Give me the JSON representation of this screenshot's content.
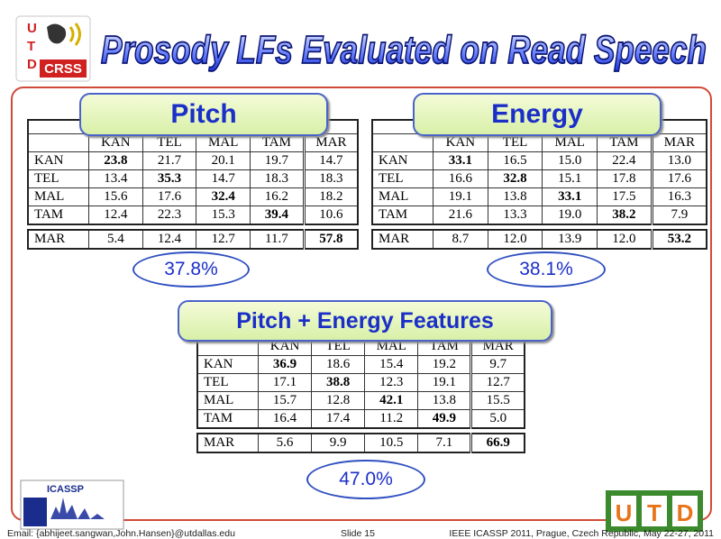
{
  "title": "Prosody LFs Evaluated on Read Speech",
  "logo": {
    "letters": [
      "U",
      "T",
      "D"
    ],
    "lab": "CRSS"
  },
  "panels": [
    {
      "label": "Pitch",
      "accuracy": "37.8%",
      "header": [
        "KAN",
        "TEL",
        "MAL",
        "TAM",
        "MAR"
      ],
      "rows": [
        {
          "label": "KAN",
          "cells": [
            "23.8",
            "21.7",
            "20.1",
            "19.7",
            "14.7"
          ]
        },
        {
          "label": "TEL",
          "cells": [
            "13.4",
            "35.3",
            "14.7",
            "18.3",
            "18.3"
          ]
        },
        {
          "label": "MAL",
          "cells": [
            "15.6",
            "17.6",
            "32.4",
            "16.2",
            "18.2"
          ]
        },
        {
          "label": "TAM",
          "cells": [
            "12.4",
            "22.3",
            "15.3",
            "39.4",
            "10.6"
          ]
        },
        {
          "label": "MAR",
          "cells": [
            "5.4",
            "12.4",
            "12.7",
            "11.7",
            "57.8"
          ]
        }
      ]
    },
    {
      "label": "Energy",
      "accuracy": "38.1%",
      "header": [
        "KAN",
        "TEL",
        "MAL",
        "TAM",
        "MAR"
      ],
      "rows": [
        {
          "label": "KAN",
          "cells": [
            "33.1",
            "16.5",
            "15.0",
            "22.4",
            "13.0"
          ]
        },
        {
          "label": "TEL",
          "cells": [
            "16.6",
            "32.8",
            "15.1",
            "17.8",
            "17.6"
          ]
        },
        {
          "label": "MAL",
          "cells": [
            "19.1",
            "13.8",
            "33.1",
            "17.5",
            "16.3"
          ]
        },
        {
          "label": "TAM",
          "cells": [
            "21.6",
            "13.3",
            "19.0",
            "38.2",
            "7.9"
          ]
        },
        {
          "label": "MAR",
          "cells": [
            "8.7",
            "12.0",
            "13.9",
            "12.0",
            "53.2"
          ]
        }
      ]
    },
    {
      "label": "Pitch + Energy Features",
      "accuracy": "47.0%",
      "header": [
        "KAN",
        "TEL",
        "MAL",
        "TAM",
        "MAR"
      ],
      "rows": [
        {
          "label": "KAN",
          "cells": [
            "36.9",
            "18.6",
            "15.4",
            "19.2",
            "9.7"
          ]
        },
        {
          "label": "TEL",
          "cells": [
            "17.1",
            "38.8",
            "12.3",
            "19.1",
            "12.7"
          ]
        },
        {
          "label": "MAL",
          "cells": [
            "15.7",
            "12.8",
            "42.1",
            "13.8",
            "15.5"
          ]
        },
        {
          "label": "TAM",
          "cells": [
            "16.4",
            "17.4",
            "11.2",
            "49.9",
            "5.0"
          ]
        },
        {
          "label": "MAR",
          "cells": [
            "5.6",
            "9.9",
            "10.5",
            "7.1",
            "66.9"
          ]
        }
      ]
    }
  ],
  "footer": {
    "email": "Email: {abhijeet.sangwan,John.Hansen}@utdallas.edu",
    "slide": "Slide  15",
    "conference": "IEEE ICASSP 2011, Prague, Czech Republic, May 22-27, 2011",
    "icassp": "ICASSP",
    "utd": [
      "U",
      "T",
      "D"
    ]
  }
}
